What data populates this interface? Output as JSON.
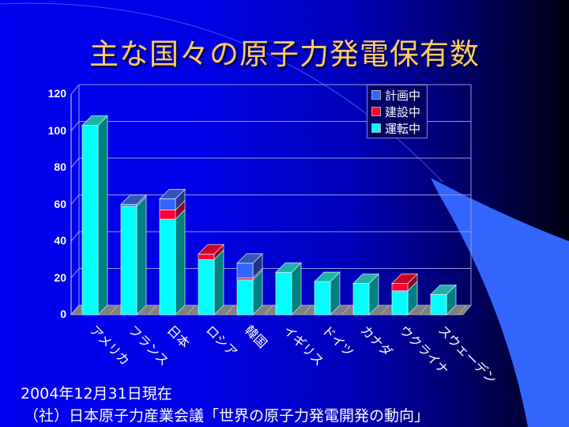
{
  "title": "主な国々の原子力発電保有数",
  "footer": {
    "date": "2004年12月31日現在",
    "source": "（社）日本原子力産業会議「世界の原子力発電開発の動向」"
  },
  "colors": {
    "operating_front": "#00FFFF",
    "operating_side": "#008080",
    "operating_top": "#20B2AA",
    "construction_front": "#FF0033",
    "construction_side": "#880022",
    "construction_top": "#CC0022",
    "planned_front": "#3366FF",
    "planned_side": "#223388",
    "planned_top": "#3355BB",
    "floor": "#808080",
    "title": "#FFCC66"
  },
  "chart_data": {
    "type": "bar",
    "stacked": true,
    "three_d": true,
    "title": "主な国々の原子力発電保有数",
    "xlabel": "",
    "ylabel": "",
    "ylim": [
      0,
      120
    ],
    "yticks": [
      0,
      20,
      40,
      60,
      80,
      100,
      120
    ],
    "grid": true,
    "legend_position": "top-right",
    "categories": [
      "アメリカ",
      "フランス",
      "日本",
      "ロシア",
      "韓国",
      "イギリス",
      "ドイツ",
      "カナダ",
      "ウクライナ",
      "スウェーデン"
    ],
    "series": [
      {
        "name": "運転中",
        "values": [
          103,
          59,
          52,
          30,
          19,
          23,
          18,
          17,
          13,
          11
        ]
      },
      {
        "name": "建設中",
        "values": [
          0,
          0,
          5,
          3,
          1,
          0,
          0,
          0,
          4,
          0
        ]
      },
      {
        "name": "計画中",
        "values": [
          0,
          1,
          6,
          0,
          8,
          0,
          0,
          0,
          0,
          0
        ]
      }
    ]
  },
  "legend": [
    {
      "label": "計画中",
      "color": "#3366FF"
    },
    {
      "label": "建設中",
      "color": "#FF0033"
    },
    {
      "label": "運転中",
      "color": "#00FFFF"
    }
  ]
}
